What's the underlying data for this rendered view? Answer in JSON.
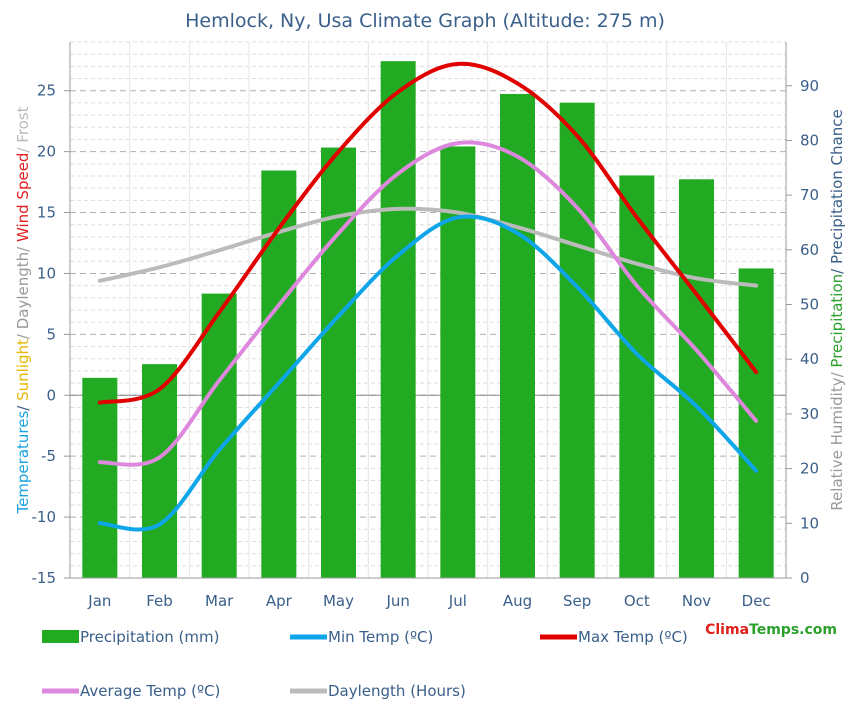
{
  "chart_data": {
    "type": "bar",
    "title": "Hemlock, Ny, Usa Climate Graph (Altitude: 275 m)",
    "categories": [
      "Jan",
      "Feb",
      "Mar",
      "Apr",
      "May",
      "Jun",
      "Jul",
      "Aug",
      "Sep",
      "Oct",
      "Nov",
      "Dec"
    ],
    "y_left": {
      "range": [
        -15,
        29
      ],
      "ticks": [
        -15,
        -10,
        -5,
        0,
        5,
        10,
        15,
        20,
        25
      ],
      "label_parts": [
        {
          "text": "Temperatures",
          "color": "#1aa3e0"
        },
        {
          "text": "/ ",
          "color": "#3a5f8a"
        },
        {
          "text": "Sunlight",
          "color": "#e6b800"
        },
        {
          "text": "/ Daylength/ ",
          "color": "#999999"
        },
        {
          "text": "Wind Speed",
          "color": "#e02020"
        },
        {
          "text": "/ Frost",
          "color": "#bbbbbb"
        }
      ]
    },
    "y_right": {
      "range": [
        0,
        98
      ],
      "ticks": [
        0,
        10,
        20,
        30,
        40,
        50,
        60,
        70,
        80,
        90
      ],
      "label_parts": [
        {
          "text": "Relative Humidity/ ",
          "color": "#999999"
        },
        {
          "text": "Precipitation",
          "color": "#2ca02c"
        },
        {
          "text": "/ Precipitation Chance",
          "color": "#3a5f8a"
        }
      ]
    },
    "grid": true,
    "legend_position": "bottom",
    "series": [
      {
        "name": "Precipitation (mm)",
        "kind": "bar",
        "axis": "right",
        "color": "#22aa22",
        "values": [
          36.6,
          39.1,
          52.0,
          74.5,
          78.7,
          94.5,
          78.9,
          88.5,
          86.9,
          73.6,
          72.9,
          56.6
        ]
      },
      {
        "name": "Min Temp (ºC)",
        "kind": "line",
        "axis": "left",
        "color": "#0ea5e9",
        "values": [
          -10.5,
          -10.6,
          -4.5,
          1.0,
          6.5,
          11.5,
          14.6,
          13.3,
          8.9,
          3.4,
          -0.9,
          -6.2
        ]
      },
      {
        "name": "Max Temp (ºC)",
        "kind": "line",
        "axis": "left",
        "color": "#e00000",
        "values": [
          -0.6,
          0.5,
          6.8,
          13.7,
          20.0,
          24.9,
          27.2,
          25.6,
          21.3,
          14.6,
          8.3,
          1.9
        ]
      },
      {
        "name": "Average Temp (ºC)",
        "kind": "line",
        "axis": "left",
        "color": "#dd88dd",
        "values": [
          -5.5,
          -5.1,
          1.2,
          7.4,
          13.3,
          18.2,
          20.7,
          19.6,
          15.4,
          9.0,
          3.7,
          -2.1
        ]
      },
      {
        "name": "Daylength (Hours)",
        "kind": "line",
        "axis": "left",
        "color": "#bbbbbb",
        "values": [
          9.4,
          10.5,
          11.9,
          13.4,
          14.7,
          15.3,
          15.0,
          13.8,
          12.3,
          10.8,
          9.6,
          9.0
        ]
      }
    ]
  },
  "brand": {
    "part1": "Clima",
    "part2": "Temps",
    "part3": ".com",
    "color1": "#e0201a",
    "color2": "#2ca02c"
  }
}
